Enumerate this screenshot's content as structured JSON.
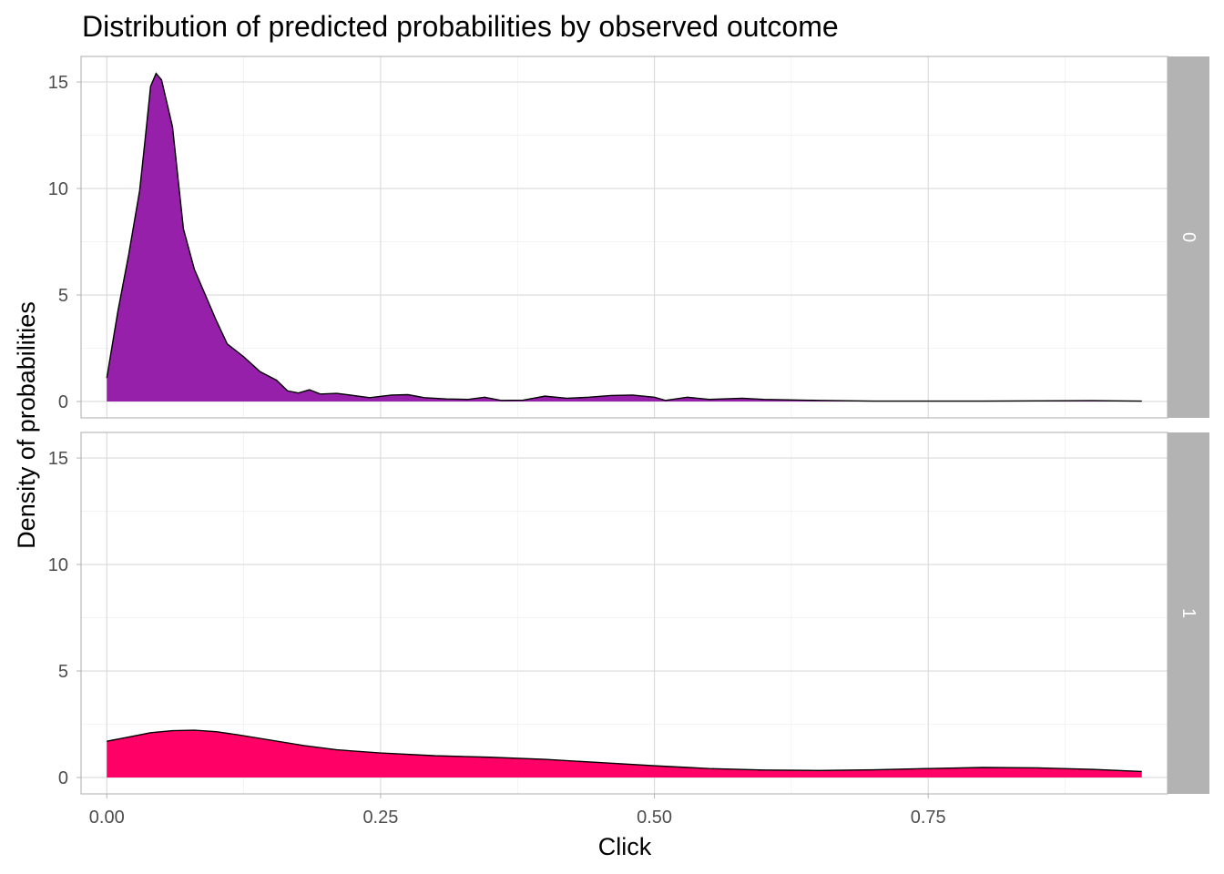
{
  "chart_data": {
    "type": "area",
    "title": "Distribution of predicted probabilities by observed outcome",
    "xlabel": "Click",
    "ylabel": "Density of probabilities",
    "xlim": [
      -0.0235,
      0.9685
    ],
    "ylim": [
      -0.77,
      16.2
    ],
    "x_ticks": [
      0.0,
      0.25,
      0.5,
      0.75
    ],
    "x_tick_labels": [
      "0.00",
      "0.25",
      "0.50",
      "0.75"
    ],
    "y_ticks": [
      0,
      5,
      10,
      15
    ],
    "y_tick_labels": [
      "0",
      "5",
      "10",
      "15"
    ],
    "grid": true,
    "legend": "none",
    "facets": [
      {
        "strip_label": "0",
        "fill_color": "#9620AA",
        "line_color": "#000000",
        "points": [
          [
            0.0,
            1.1
          ],
          [
            0.01,
            4.2
          ],
          [
            0.02,
            6.9
          ],
          [
            0.03,
            9.9
          ],
          [
            0.035,
            12.3
          ],
          [
            0.04,
            14.8
          ],
          [
            0.045,
            15.4
          ],
          [
            0.05,
            15.1
          ],
          [
            0.06,
            12.9
          ],
          [
            0.07,
            8.1
          ],
          [
            0.08,
            6.2
          ],
          [
            0.09,
            5.0
          ],
          [
            0.1,
            3.8
          ],
          [
            0.11,
            2.7
          ],
          [
            0.125,
            2.1
          ],
          [
            0.14,
            1.4
          ],
          [
            0.155,
            1.0
          ],
          [
            0.165,
            0.5
          ],
          [
            0.175,
            0.4
          ],
          [
            0.185,
            0.55
          ],
          [
            0.195,
            0.35
          ],
          [
            0.21,
            0.38
          ],
          [
            0.23,
            0.25
          ],
          [
            0.24,
            0.18
          ],
          [
            0.26,
            0.3
          ],
          [
            0.275,
            0.32
          ],
          [
            0.29,
            0.18
          ],
          [
            0.31,
            0.12
          ],
          [
            0.33,
            0.1
          ],
          [
            0.345,
            0.2
          ],
          [
            0.36,
            0.05
          ],
          [
            0.38,
            0.06
          ],
          [
            0.4,
            0.25
          ],
          [
            0.42,
            0.15
          ],
          [
            0.44,
            0.2
          ],
          [
            0.46,
            0.28
          ],
          [
            0.48,
            0.3
          ],
          [
            0.5,
            0.2
          ],
          [
            0.51,
            0.05
          ],
          [
            0.53,
            0.2
          ],
          [
            0.55,
            0.1
          ],
          [
            0.58,
            0.15
          ],
          [
            0.6,
            0.1
          ],
          [
            0.65,
            0.05
          ],
          [
            0.7,
            0.02
          ],
          [
            0.8,
            0.02
          ],
          [
            0.85,
            0.03
          ],
          [
            0.9,
            0.04
          ],
          [
            0.92,
            0.03
          ],
          [
            0.945,
            0.02
          ]
        ]
      },
      {
        "strip_label": "1",
        "fill_color": "#FF0066",
        "line_color": "#000000",
        "points": [
          [
            0.0,
            1.7
          ],
          [
            0.02,
            1.9
          ],
          [
            0.04,
            2.1
          ],
          [
            0.06,
            2.2
          ],
          [
            0.08,
            2.22
          ],
          [
            0.1,
            2.15
          ],
          [
            0.12,
            2.0
          ],
          [
            0.15,
            1.75
          ],
          [
            0.18,
            1.5
          ],
          [
            0.21,
            1.3
          ],
          [
            0.25,
            1.15
          ],
          [
            0.3,
            1.02
          ],
          [
            0.35,
            0.95
          ],
          [
            0.4,
            0.85
          ],
          [
            0.45,
            0.7
          ],
          [
            0.5,
            0.55
          ],
          [
            0.55,
            0.42
          ],
          [
            0.6,
            0.35
          ],
          [
            0.65,
            0.33
          ],
          [
            0.7,
            0.36
          ],
          [
            0.75,
            0.42
          ],
          [
            0.8,
            0.47
          ],
          [
            0.85,
            0.45
          ],
          [
            0.9,
            0.38
          ],
          [
            0.945,
            0.28
          ]
        ]
      }
    ]
  }
}
